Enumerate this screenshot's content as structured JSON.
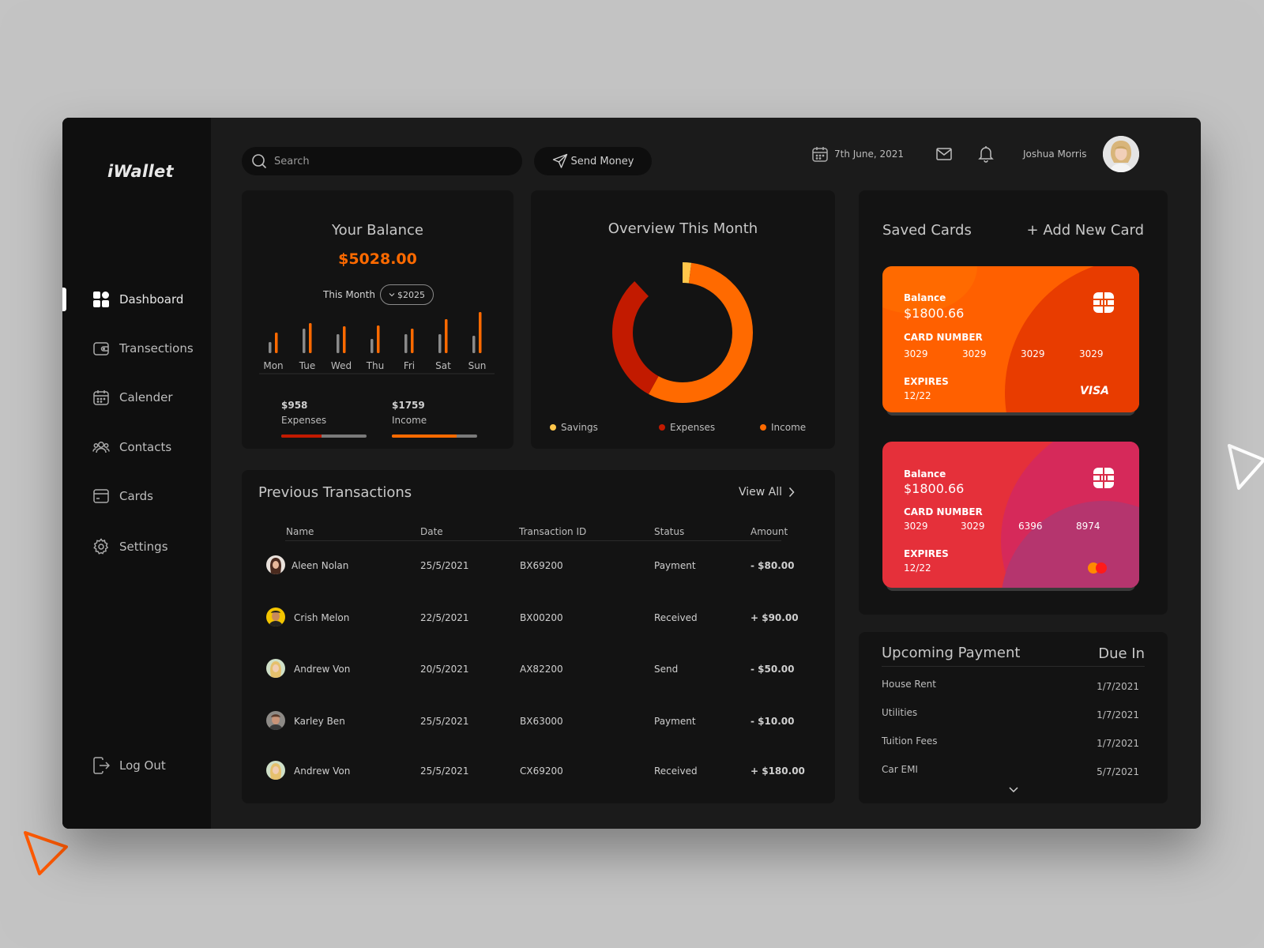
{
  "app": {
    "logo": "iWallet"
  },
  "sidebar": {
    "items": [
      {
        "label": "Dashboard",
        "icon": "grid-icon",
        "active": true
      },
      {
        "label": "Transections",
        "icon": "wallet-icon"
      },
      {
        "label": "Calender",
        "icon": "calendar-icon"
      },
      {
        "label": "Contacts",
        "icon": "users-icon"
      },
      {
        "label": "Cards",
        "icon": "card-icon"
      },
      {
        "label": "Settings",
        "icon": "gear-icon"
      }
    ],
    "logout": "Log Out"
  },
  "header": {
    "search_placeholder": "Search",
    "send_money": "Send Money",
    "date": "7th June, 2021",
    "user_name": "Joshua Morris"
  },
  "balance": {
    "title": "Your Balance",
    "amount": "$5028.00",
    "period_label": "This Month",
    "period_value": "$2025",
    "days": [
      "Mon",
      "Tue",
      "Wed",
      "Thu",
      "Fri",
      "Sat",
      "Sun"
    ],
    "expenses_value": "$958",
    "expenses_label": "Expenses",
    "expenses_progress": 0.47,
    "income_value": "$1759",
    "income_label": "Income",
    "income_progress": 0.76
  },
  "chart_data": {
    "type": "bar",
    "categories": [
      "Mon",
      "Tue",
      "Wed",
      "Thu",
      "Fri",
      "Sat",
      "Sun"
    ],
    "series": [
      {
        "values": [
          14,
          31,
          24,
          18,
          24,
          24,
          22
        ]
      },
      {
        "values": [
          26,
          38,
          34,
          35,
          31,
          43,
          52
        ]
      }
    ],
    "colors": [
      "#8a8a8a",
      "#ff6a00"
    ]
  },
  "overview": {
    "title": "Overview This Month",
    "segments": [
      {
        "name": "Savings",
        "share": 0.14,
        "color": "#ffc64a"
      },
      {
        "name": "Expenses",
        "share": 0.3,
        "color": "#c21a00"
      },
      {
        "name": "Income",
        "share": 0.56,
        "color": "#ff6a00"
      }
    ]
  },
  "saved_cards": {
    "title": "Saved Cards",
    "add_label": "+ Add New Card",
    "cards": [
      {
        "balance_label": "Balance",
        "balance": "$1800.66",
        "number_label": "CARD NUMBER",
        "numbers": [
          "3029",
          "3029",
          "3029",
          "3029"
        ],
        "expires_label": "EXPIRES",
        "expires": "12/22",
        "brand": "VISA"
      },
      {
        "balance_label": "Balance",
        "balance": "$1800.66",
        "number_label": "CARD NUMBER",
        "numbers": [
          "3029",
          "3029",
          "6396",
          "8974"
        ],
        "expires_label": "EXPIRES",
        "expires": "12/22",
        "brand": "mastercard-icon"
      }
    ]
  },
  "upcoming": {
    "title": "Upcoming Payment",
    "due_label": "Due In",
    "rows": [
      {
        "name": "House Rent",
        "date": "1/7/2021"
      },
      {
        "name": "Utilities",
        "date": "1/7/2021"
      },
      {
        "name": "Tuition Fees",
        "date": "1/7/2021"
      },
      {
        "name": "Car EMI",
        "date": "5/7/2021"
      }
    ]
  },
  "transactions": {
    "title": "Previous Transactions",
    "view_all": "View All",
    "columns": [
      "Name",
      "Date",
      "Transaction ID",
      "Status",
      "Amount"
    ],
    "rows": [
      {
        "name": "Aleen Nolan",
        "date": "25/5/2021",
        "id": "BX69200",
        "status": "Payment",
        "amount": "- $80.00"
      },
      {
        "name": "Crish Melon",
        "date": "22/5/2021",
        "id": "BX00200",
        "status": "Received",
        "amount": "+ $90.00"
      },
      {
        "name": "Andrew Von",
        "date": "20/5/2021",
        "id": "AX82200",
        "status": "Send",
        "amount": "- $50.00"
      },
      {
        "name": "Karley Ben",
        "date": "25/5/2021",
        "id": "BX63000",
        "status": "Payment",
        "amount": "- $10.00"
      },
      {
        "name": "Andrew Von",
        "date": "25/5/2021",
        "id": "CX69200",
        "status": "Received",
        "amount": "+ $180.00"
      }
    ]
  },
  "colors": {
    "accent": "#ff6a00",
    "expense": "#c21a00",
    "savings": "#ffc64a"
  }
}
